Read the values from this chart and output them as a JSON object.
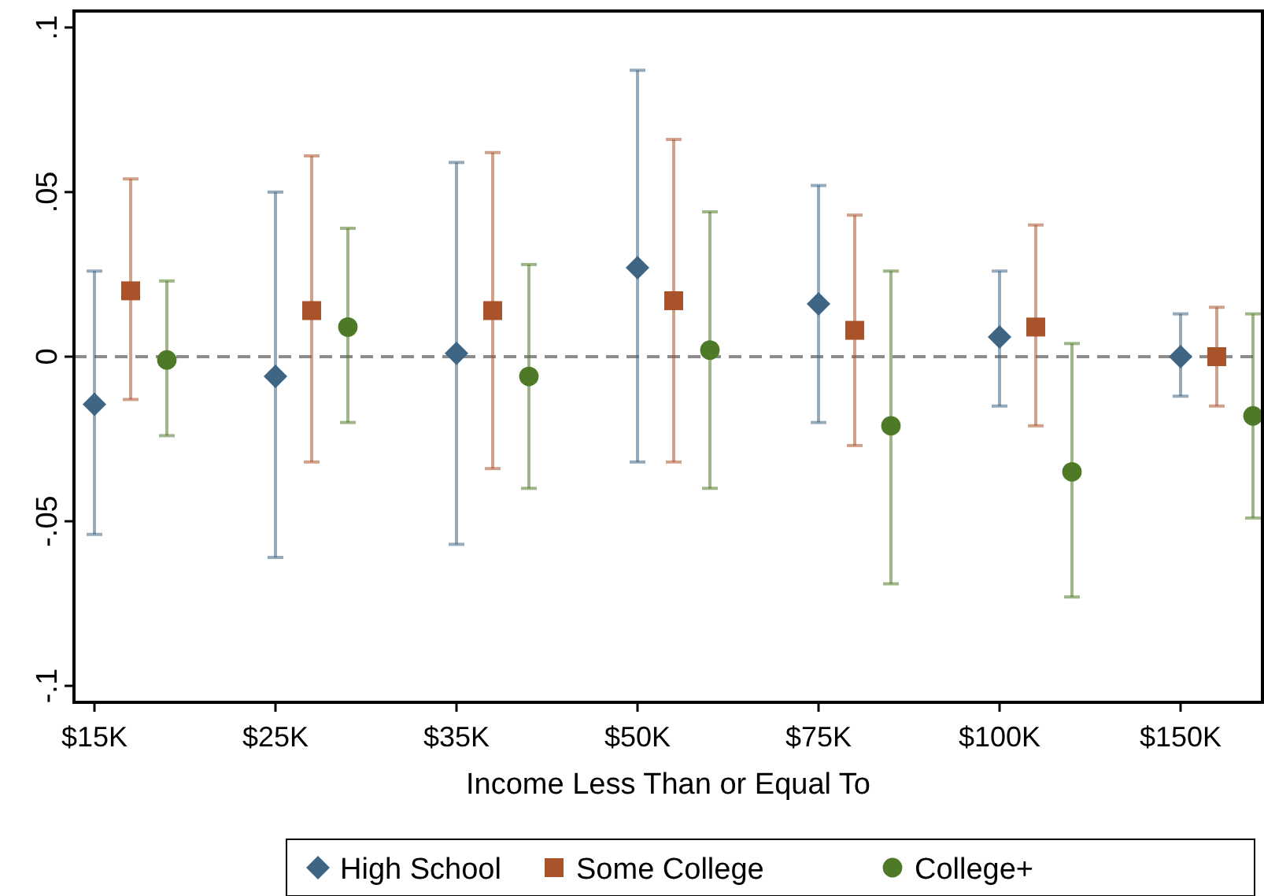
{
  "chart_data": {
    "type": "scatter",
    "xlabel": "Income Less Than or Equal To",
    "categories": [
      "$15K",
      "$25K",
      "$35K",
      "$50K",
      "$75K",
      "$100K",
      "$150K"
    ],
    "series": [
      {
        "name": "High School",
        "color": "#3e6584",
        "marker": "diamond",
        "values": [
          -0.0145,
          -0.006,
          0.001,
          0.027,
          0.016,
          0.006,
          0.0
        ],
        "errors": [
          [
            -0.054,
            0.026
          ],
          [
            -0.061,
            0.05
          ],
          [
            -0.057,
            0.059
          ],
          [
            -0.032,
            0.087
          ],
          [
            -0.02,
            0.052
          ],
          [
            -0.015,
            0.026
          ],
          [
            -0.012,
            0.013
          ]
        ]
      },
      {
        "name": "Some College",
        "color": "#a9532b",
        "marker": "square",
        "values": [
          0.02,
          0.014,
          0.014,
          0.017,
          0.008,
          0.009,
          0.0
        ],
        "errors": [
          [
            -0.013,
            0.054
          ],
          [
            -0.032,
            0.061
          ],
          [
            -0.034,
            0.062
          ],
          [
            -0.032,
            0.066
          ],
          [
            -0.027,
            0.043
          ],
          [
            -0.021,
            0.04
          ],
          [
            -0.015,
            0.015
          ]
        ]
      },
      {
        "name": "College+",
        "color": "#4e7a27",
        "marker": "circle",
        "values": [
          -0.001,
          0.009,
          -0.006,
          0.002,
          -0.021,
          -0.035,
          -0.018
        ],
        "errors": [
          [
            -0.024,
            0.023
          ],
          [
            -0.02,
            0.039
          ],
          [
            -0.04,
            0.028
          ],
          [
            -0.04,
            0.044
          ],
          [
            -0.069,
            0.026
          ],
          [
            -0.073,
            0.004
          ],
          [
            -0.049,
            0.013
          ]
        ]
      }
    ],
    "ylim": [
      -0.105,
      0.105
    ],
    "yticks": [
      {
        "value": 0.1,
        "label": ".1"
      },
      {
        "value": 0.05,
        "label": ".05"
      },
      0,
      {
        "value": -0.05,
        "label": "-.05"
      },
      {
        "value": -0.1,
        "label": "-.1"
      }
    ],
    "ref_lines": [
      {
        "axis": "y",
        "value": 0,
        "color": "#8c8c8c",
        "line_style": "dashed"
      }
    ],
    "grid": false,
    "legend": "bottom"
  }
}
